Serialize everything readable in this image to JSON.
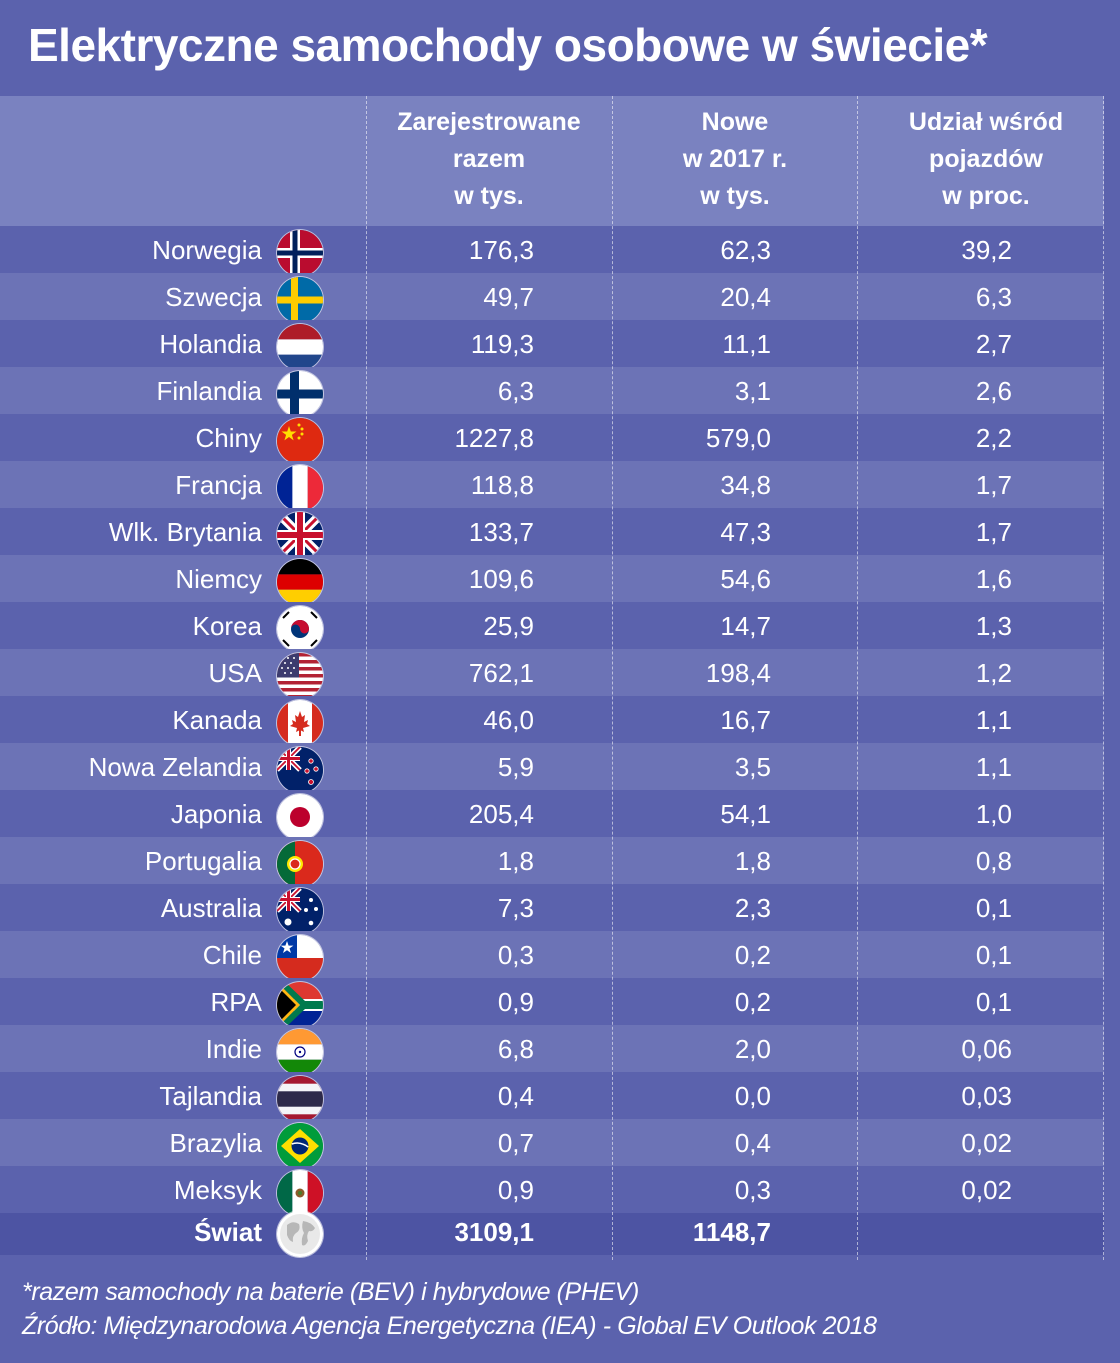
{
  "chart_data": {
    "type": "table",
    "title": "Elektryczne samochody osobowe w świecie*",
    "columns": [
      {
        "lines": [
          "Zarejestrowane",
          "razem",
          "w tys."
        ]
      },
      {
        "lines": [
          "Nowe",
          "w 2017 r.",
          "w tys."
        ]
      },
      {
        "lines": [
          "Udział wśród",
          "pojazdów",
          "w proc."
        ]
      }
    ],
    "rows": [
      {
        "country": "Norwegia",
        "flag": "norway-flag-icon",
        "registered": "176,3",
        "new_2017": "62,3",
        "share": "39,2"
      },
      {
        "country": "Szwecja",
        "flag": "sweden-flag-icon",
        "registered": "49,7",
        "new_2017": "20,4",
        "share": "6,3"
      },
      {
        "country": "Holandia",
        "flag": "netherlands-flag-icon",
        "registered": "119,3",
        "new_2017": "11,1",
        "share": "2,7"
      },
      {
        "country": "Finlandia",
        "flag": "finland-flag-icon",
        "registered": "6,3",
        "new_2017": "3,1",
        "share": "2,6"
      },
      {
        "country": "Chiny",
        "flag": "china-flag-icon",
        "registered": "1227,8",
        "new_2017": "579,0",
        "share": "2,2"
      },
      {
        "country": "Francja",
        "flag": "france-flag-icon",
        "registered": "118,8",
        "new_2017": "34,8",
        "share": "1,7"
      },
      {
        "country": "Wlk. Brytania",
        "flag": "uk-flag-icon",
        "registered": "133,7",
        "new_2017": "47,3",
        "share": "1,7"
      },
      {
        "country": "Niemcy",
        "flag": "germany-flag-icon",
        "registered": "109,6",
        "new_2017": "54,6",
        "share": "1,6"
      },
      {
        "country": "Korea",
        "flag": "korea-flag-icon",
        "registered": "25,9",
        "new_2017": "14,7",
        "share": "1,3"
      },
      {
        "country": "USA",
        "flag": "usa-flag-icon",
        "registered": "762,1",
        "new_2017": "198,4",
        "share": "1,2"
      },
      {
        "country": "Kanada",
        "flag": "canada-flag-icon",
        "registered": "46,0",
        "new_2017": "16,7",
        "share": "1,1"
      },
      {
        "country": "Nowa Zelandia",
        "flag": "new-zealand-flag-icon",
        "registered": "5,9",
        "new_2017": "3,5",
        "share": "1,1"
      },
      {
        "country": "Japonia",
        "flag": "japan-flag-icon",
        "registered": "205,4",
        "new_2017": "54,1",
        "share": "1,0"
      },
      {
        "country": "Portugalia",
        "flag": "portugal-flag-icon",
        "registered": "1,8",
        "new_2017": "1,8",
        "share": "0,8"
      },
      {
        "country": "Australia",
        "flag": "australia-flag-icon",
        "registered": "7,3",
        "new_2017": "2,3",
        "share": "0,1"
      },
      {
        "country": "Chile",
        "flag": "chile-flag-icon",
        "registered": "0,3",
        "new_2017": "0,2",
        "share": "0,1"
      },
      {
        "country": "RPA",
        "flag": "south-africa-flag-icon",
        "registered": "0,9",
        "new_2017": "0,2",
        "share": "0,1"
      },
      {
        "country": "Indie",
        "flag": "india-flag-icon",
        "registered": "6,8",
        "new_2017": "2,0",
        "share": "0,06"
      },
      {
        "country": "Tajlandia",
        "flag": "thailand-flag-icon",
        "registered": "0,4",
        "new_2017": "0,0",
        "share": "0,03"
      },
      {
        "country": "Brazylia",
        "flag": "brazil-flag-icon",
        "registered": "0,7",
        "new_2017": "0,4",
        "share": "0,02"
      },
      {
        "country": "Meksyk",
        "flag": "mexico-flag-icon",
        "registered": "0,9",
        "new_2017": "0,3",
        "share": "0,02"
      }
    ],
    "total": {
      "country": "Świat",
      "flag": "globe-icon",
      "registered": "3109,1",
      "new_2017": "1148,7",
      "share": ""
    }
  },
  "footnotes": {
    "note": "*razem samochody na baterie (BEV) i hybrydowe (PHEV)",
    "source": "Źródło: Międzynarodowa Agencja Energetyczna (IEA) - Global EV Outlook 2018"
  },
  "colors": {
    "background": "#5b62ad",
    "row_alt": "#6c73b6",
    "header": "#7a82c0",
    "total_row": "#4d54a3"
  }
}
